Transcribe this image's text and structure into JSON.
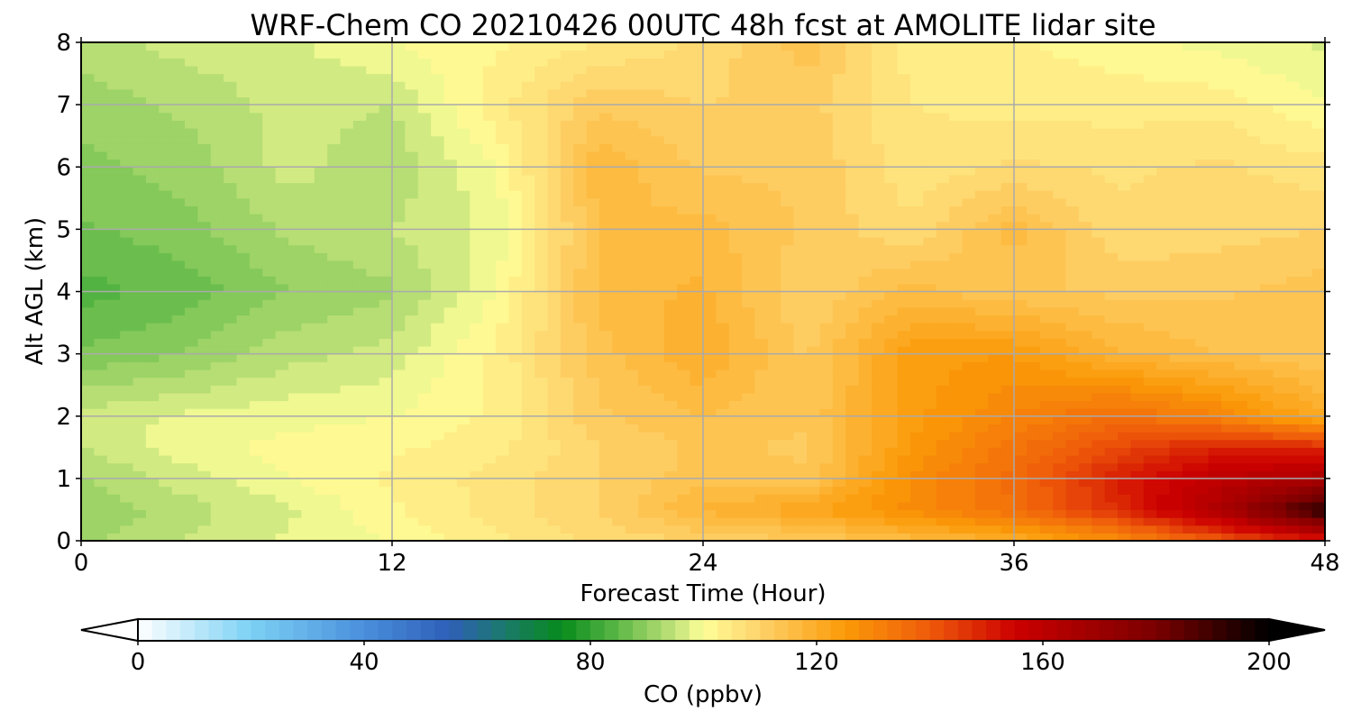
{
  "chart_data": {
    "type": "heatmap",
    "title": "WRF-Chem CO  20210426 00UTC 48h fcst at AMOLITE lidar site",
    "xlabel": "Forecast Time (Hour)",
    "ylabel": "Alt AGL (km)",
    "xlim": [
      0,
      48
    ],
    "ylim": [
      0,
      8
    ],
    "xticks": [
      0,
      12,
      24,
      36,
      48
    ],
    "yticks": [
      0,
      1,
      2,
      3,
      4,
      5,
      6,
      7,
      8
    ],
    "grid": true,
    "x_hours": [
      0,
      4,
      8,
      12,
      16,
      20,
      24,
      28,
      32,
      36,
      40,
      44,
      48
    ],
    "z_alt_km": [
      0,
      0.5,
      1,
      1.5,
      2,
      3,
      4,
      5,
      6,
      7,
      8
    ],
    "values_ppbv": [
      [
        92,
        95,
        98,
        100,
        104,
        108,
        110,
        112,
        116,
        120,
        128,
        140,
        150
      ],
      [
        90,
        94,
        97,
        102,
        106,
        110,
        118,
        122,
        128,
        135,
        148,
        165,
        195
      ],
      [
        92,
        96,
        100,
        103,
        106,
        110,
        114,
        113,
        128,
        136,
        150,
        160,
        165
      ],
      [
        95,
        99,
        101,
        102,
        104,
        110,
        113,
        112,
        125,
        134,
        143,
        150,
        148
      ],
      [
        96,
        98,
        99,
        100,
        103,
        112,
        115,
        113,
        124,
        130,
        136,
        130,
        120
      ],
      [
        88,
        90,
        94,
        96,
        103,
        114,
        120,
        112,
        124,
        125,
        118,
        115,
        113
      ],
      [
        84,
        86,
        90,
        92,
        100,
        116,
        118,
        110,
        116,
        113,
        112,
        112,
        114
      ],
      [
        87,
        89,
        93,
        95,
        98,
        115,
        116,
        112,
        108,
        116,
        108,
        109,
        110
      ],
      [
        89,
        91,
        96,
        93,
        100,
        117,
        112,
        112,
        106,
        108,
        107,
        108,
        106
      ],
      [
        91,
        93,
        96,
        95,
        104,
        112,
        110,
        111,
        105,
        104,
        104,
        104,
        100
      ],
      [
        94,
        96,
        97,
        100,
        102,
        105,
        108,
        114,
        104,
        103,
        101,
        99,
        97
      ]
    ],
    "colorbar": {
      "label": "CO  (ppbv)",
      "min": 0,
      "max": 200,
      "step": 2.5,
      "ticks": [
        0,
        40,
        80,
        120,
        160,
        200
      ],
      "extend": "both",
      "colors": [
        {
          "v": 0,
          "c": "#ffffff"
        },
        {
          "v": 20,
          "c": "#7cd1f5"
        },
        {
          "v": 40,
          "c": "#4a8fdc"
        },
        {
          "v": 55,
          "c": "#2e5fb8"
        },
        {
          "v": 65,
          "c": "#1a7a6a"
        },
        {
          "v": 75,
          "c": "#078b1b"
        },
        {
          "v": 85,
          "c": "#5eb947"
        },
        {
          "v": 95,
          "c": "#c3e37a"
        },
        {
          "v": 100,
          "c": "#ffff99"
        },
        {
          "v": 110,
          "c": "#fed26a"
        },
        {
          "v": 125,
          "c": "#fb9a08"
        },
        {
          "v": 140,
          "c": "#ef5b0a"
        },
        {
          "v": 155,
          "c": "#cc0000"
        },
        {
          "v": 180,
          "c": "#7a0000"
        },
        {
          "v": 200,
          "c": "#000000"
        }
      ]
    }
  }
}
